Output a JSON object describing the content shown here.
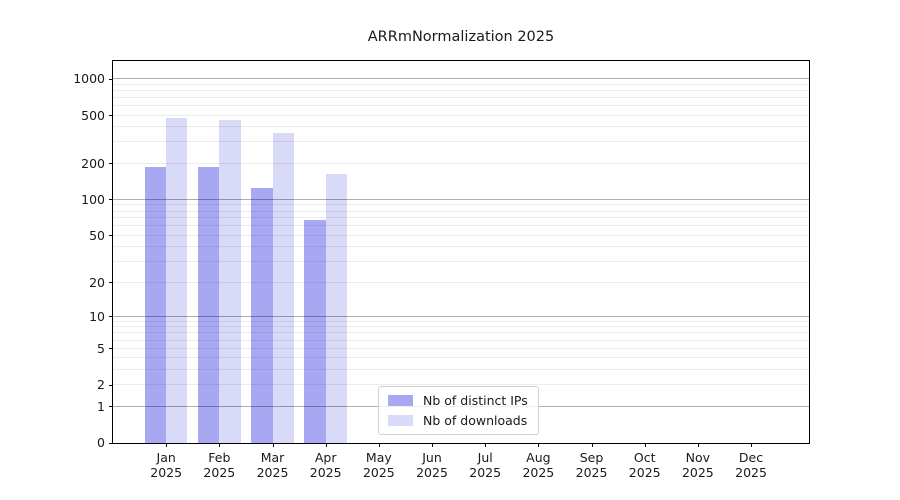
{
  "chart_data": {
    "type": "bar",
    "title": "ARRmNormalization 2025",
    "categories": [
      "Jan 2025",
      "Feb 2025",
      "Mar 2025",
      "Apr 2025",
      "May 2025",
      "Jun 2025",
      "Jul 2025",
      "Aug 2025",
      "Sep 2025",
      "Oct 2025",
      "Nov 2025",
      "Dec 2025"
    ],
    "series": [
      {
        "name": "Nb of distinct IPs",
        "color": "#a8a8f2",
        "values": [
          187,
          188,
          126,
          68,
          0,
          0,
          0,
          0,
          0,
          0,
          0,
          0
        ]
      },
      {
        "name": "Nb of downloads",
        "color": "#d9d9f8",
        "values": [
          476,
          458,
          362,
          165,
          0,
          0,
          0,
          0,
          0,
          0,
          0,
          0
        ]
      }
    ],
    "xlabel": "",
    "ylabel": "",
    "y_scale": "log1p",
    "y_ticks": [
      1000,
      500,
      200,
      100,
      50,
      20,
      10,
      5,
      2,
      1,
      0
    ],
    "ylim": [
      0,
      1410
    ],
    "grid": "horizontal major (powers of 10, gray) and minor (log subdivisions, light gray) lines",
    "legend_position": "inside-bottom-center",
    "bar_layout": "paired bars per month, distinct-IPs left of tick, downloads right of tick"
  },
  "colors": {
    "background": "#ffffff",
    "axis_spine": "#000000",
    "text": "#1a1a1a",
    "major_grid": "#adadad",
    "minor_grid": "#ebebeb",
    "legend_border": "#d2d2d2"
  }
}
